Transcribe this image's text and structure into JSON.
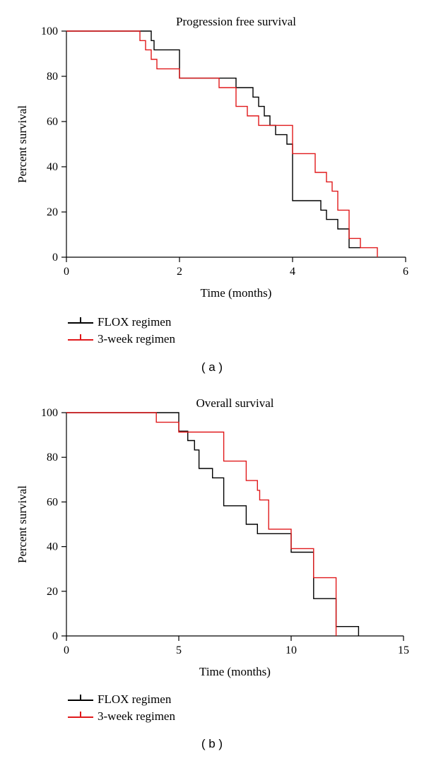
{
  "colors": {
    "flox": "#000000",
    "three_week": "#e0191b",
    "axis": "#000000"
  },
  "chart_data": [
    {
      "type": "line",
      "step": true,
      "title": "Progression free survival",
      "xlabel": "Time (months)",
      "ylabel": "Percent survival",
      "xlim": [
        0,
        6
      ],
      "ylim": [
        0,
        100
      ],
      "xticks": [
        "0",
        "2",
        "4",
        "6"
      ],
      "yticks": [
        "0",
        "20",
        "40",
        "60",
        "80",
        "100"
      ],
      "xtick_values": [
        0,
        2,
        4,
        6
      ],
      "ytick_values": [
        0,
        20,
        40,
        60,
        80,
        100
      ],
      "legend": "bottom-left",
      "grid": false,
      "panel_label": "( a )",
      "series": [
        {
          "name": "FLOX regimen",
          "color": "#000000",
          "x": [
            0,
            1.5,
            1.55,
            1.6,
            2.0,
            3.0,
            3.3,
            3.4,
            3.5,
            3.6,
            3.7,
            3.9,
            4.0,
            4.5,
            4.6,
            4.8,
            5.0,
            5.2
          ],
          "y": [
            100,
            95.8,
            91.7,
            91.7,
            79.2,
            75,
            70.8,
            66.7,
            62.5,
            58.3,
            54.2,
            50,
            25,
            20.8,
            16.7,
            12.5,
            4.2,
            4.2
          ]
        },
        {
          "name": "3-week regimen",
          "color": "#e0191b",
          "x": [
            0,
            1.3,
            1.4,
            1.5,
            1.6,
            2.0,
            2.7,
            3.0,
            3.2,
            3.4,
            4.0,
            4.4,
            4.6,
            4.7,
            4.8,
            5.0,
            5.1,
            5.2,
            5.5
          ],
          "y": [
            100,
            95.8,
            91.7,
            87.5,
            83.3,
            79.2,
            75,
            66.7,
            62.5,
            58.3,
            45.8,
            37.5,
            33.3,
            29.2,
            20.8,
            8.3,
            8.3,
            4.2,
            0
          ]
        }
      ]
    },
    {
      "type": "line",
      "step": true,
      "title": "Overall survival",
      "xlabel": "Time (months)",
      "ylabel": "Percent survival",
      "xlim": [
        0,
        15
      ],
      "ylim": [
        0,
        100
      ],
      "xticks": [
        "0",
        "5",
        "10",
        "15"
      ],
      "yticks": [
        "0",
        "20",
        "40",
        "60",
        "80",
        "100"
      ],
      "xtick_values": [
        0,
        5,
        10,
        15
      ],
      "ytick_values": [
        0,
        20,
        40,
        60,
        80,
        100
      ],
      "legend": "bottom-left",
      "grid": false,
      "panel_label": "( b )",
      "series": [
        {
          "name": "FLOX regimen",
          "color": "#000000",
          "x": [
            0,
            5.0,
            5.4,
            5.7,
            5.9,
            6.0,
            6.5,
            7.0,
            8.0,
            8.5,
            10.0,
            11.0,
            12.0,
            13.0
          ],
          "y": [
            100,
            91.7,
            87.5,
            83.3,
            75,
            75,
            70.8,
            58.3,
            50,
            45.8,
            37.5,
            16.7,
            4.2,
            0
          ]
        },
        {
          "name": "3-week regimen",
          "color": "#e0191b",
          "x": [
            0,
            4.0,
            5.0,
            6.0,
            7.0,
            8.0,
            8.5,
            8.6,
            9.0,
            10.0,
            11.0,
            12.0
          ],
          "y": [
            100,
            95.7,
            91.3,
            91.3,
            78.3,
            69.6,
            65.2,
            60.9,
            47.8,
            39.1,
            26.1,
            0
          ]
        }
      ]
    }
  ]
}
